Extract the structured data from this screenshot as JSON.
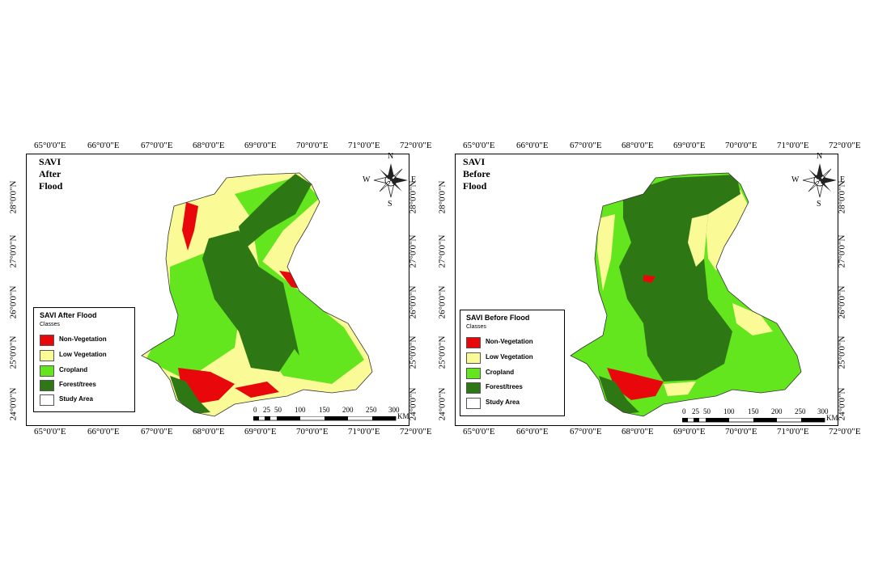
{
  "lon_labels": [
    "65°0'0\"E",
    "66°0'0\"E",
    "67°0'0\"E",
    "68°0'0\"E",
    "69°0'0\"E",
    "70°0'0\"E",
    "71°0'0\"E",
    "72°0'0\"E"
  ],
  "lat_labels": [
    "28°0'0\"N",
    "27°0'0\"N",
    "26°0'0\"N",
    "25°0'0\"N",
    "24°0'0\"N"
  ],
  "colors": {
    "non_vegetation": "#e8080b",
    "low_vegetation": "#fafa96",
    "cropland": "#64e61e",
    "forest_trees": "#2d7814",
    "study_area": "#ffffff"
  },
  "compass": {
    "n": "N",
    "s": "S",
    "e": "E",
    "w": "W"
  },
  "scale": {
    "ticks": [
      "0",
      "25",
      "50",
      "100",
      "150",
      "200",
      "250",
      "300"
    ],
    "unit": "KM"
  },
  "maps": [
    {
      "title": "SAVI After Flood",
      "legend": {
        "title": "SAVI After Flood",
        "subtitle": "Classes",
        "items": [
          "Non-Vegetation",
          "Low Vegetation",
          "Cropland",
          "Forest/trees",
          "Study Area"
        ]
      }
    },
    {
      "title": "SAVI Before Flood",
      "legend": {
        "title": "SAVI Before Flood",
        "subtitle": "Classes",
        "items": [
          "Non-Vegetation",
          "Low Vegetation",
          "Cropland",
          "Forest/trees",
          "Study Area"
        ]
      }
    }
  ]
}
